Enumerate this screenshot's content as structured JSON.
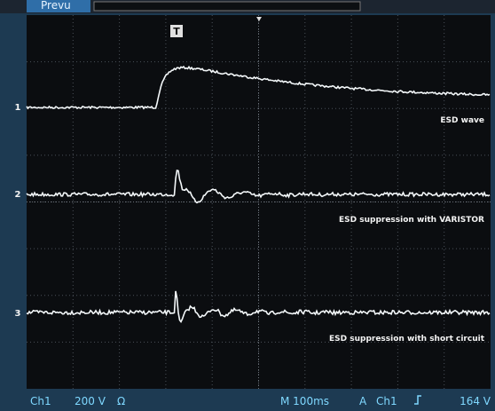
{
  "top_bar": {
    "mode": "Prevu",
    "trigger_marker": "T"
  },
  "channel_markers": [
    "1",
    "2",
    "3"
  ],
  "trace_labels": [
    "ESD wave",
    "ESD suppression with VARISTOR",
    "ESD suppression with short circuit"
  ],
  "status_bar": {
    "channel": "Ch1",
    "scale": "200 V",
    "coupling": "Ω",
    "timebase": "M 100ms",
    "trigger_mode": "A",
    "trigger_source": "Ch1",
    "trigger_level": "164 V"
  }
}
